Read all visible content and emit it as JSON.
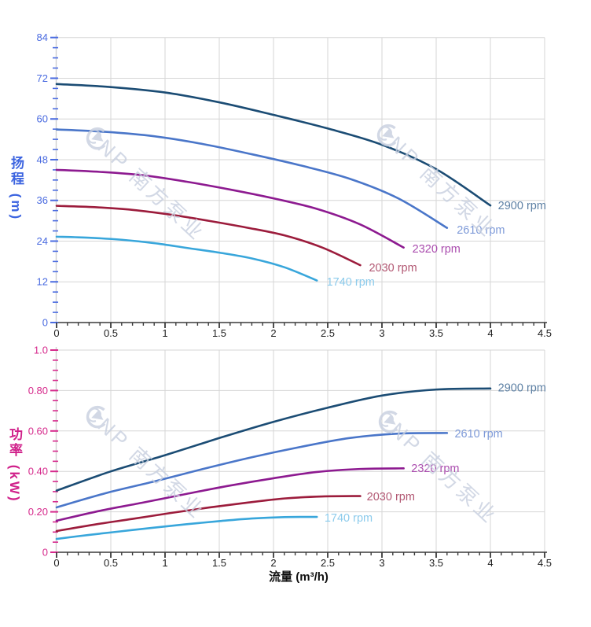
{
  "watermark": {
    "text": "CNP 南方泵业",
    "color": "#c7cfdf"
  },
  "chart_data": [
    {
      "type": "line",
      "id": "head-curves",
      "title": "",
      "xlabel": "流量 (m³/h)",
      "ylabel": "扬程 (m)",
      "xlim": [
        0,
        4.5
      ],
      "ylim": [
        0,
        84
      ],
      "x_major": 0.5,
      "x_minor": 0.1,
      "y_major": 12,
      "y_minor": 3,
      "grid": true,
      "x_tick_labels": [
        "0",
        "0.5",
        "1",
        "1.5",
        "2",
        "2.5",
        "3",
        "3.5",
        "4",
        "4.5"
      ],
      "y_tick_labels": [
        "0",
        "12",
        "24",
        "36",
        "48",
        "60",
        "72",
        "84"
      ],
      "axis_color": "#4a6be0",
      "x_axis_color": "#3a3a3a",
      "grid_color": "#d6d6d6",
      "series": [
        {
          "name": "2900 rpm",
          "color": "#1b4c74",
          "label_color": "#5d80a4",
          "label_x": 4.07,
          "label_y": 34.6,
          "x": [
            0,
            0.5,
            1,
            1.5,
            2,
            2.5,
            3,
            3.5,
            4
          ],
          "y": [
            70.3,
            69.4,
            67.8,
            64.9,
            61.2,
            57.2,
            52.4,
            45.2,
            34.5
          ]
        },
        {
          "name": "2610 rpm",
          "color": "#4a76c9",
          "label_color": "#7e9ad8",
          "label_x": 3.69,
          "label_y": 27.4,
          "x": [
            0,
            0.45,
            0.9,
            1.35,
            1.8,
            2.25,
            2.7,
            3.15,
            3.6
          ],
          "y": [
            56.9,
            56.2,
            54.9,
            52.6,
            49.6,
            46.3,
            42.4,
            36.6,
            27.9
          ]
        },
        {
          "name": "2320 rpm",
          "color": "#8d1a90",
          "label_color": "#aa4cae",
          "label_x": 3.28,
          "label_y": 21.8,
          "x": [
            0,
            0.4,
            0.8,
            1.2,
            1.6,
            2.0,
            2.4,
            2.8,
            3.2
          ],
          "y": [
            45.0,
            44.4,
            43.4,
            41.5,
            39.2,
            36.6,
            33.5,
            28.9,
            22.1
          ]
        },
        {
          "name": "2030 rpm",
          "color": "#9c1c3c",
          "label_color": "#b25873",
          "label_x": 2.88,
          "label_y": 16.2,
          "x": [
            0,
            0.35,
            0.7,
            1.05,
            1.4,
            1.75,
            2.1,
            2.45,
            2.8
          ],
          "y": [
            34.4,
            34.0,
            33.2,
            31.8,
            30.0,
            28.0,
            25.7,
            22.1,
            16.9
          ]
        },
        {
          "name": "1740 rpm",
          "color": "#38a6db",
          "label_color": "#8ccbec",
          "label_x": 2.49,
          "label_y": 12.0,
          "x": [
            0,
            0.3,
            0.6,
            0.9,
            1.2,
            1.5,
            1.8,
            2.1,
            2.4
          ],
          "y": [
            25.3,
            25.0,
            24.4,
            23.4,
            22.0,
            20.6,
            18.9,
            16.3,
            12.4
          ]
        }
      ]
    },
    {
      "type": "line",
      "id": "power-curves",
      "title": "",
      "xlabel": "流量 (m³/h)",
      "ylabel": "功率 (kW)",
      "xlim": [
        0,
        4.5
      ],
      "ylim": [
        0,
        1.0
      ],
      "x_major": 0.5,
      "x_minor": 0.1,
      "y_major": 0.2,
      "y_minor": 0.05,
      "grid": true,
      "x_tick_labels": [
        "0",
        "0.5",
        "1",
        "1.5",
        "2",
        "2.5",
        "3",
        "3.5",
        "4",
        "4.5"
      ],
      "y_tick_labels": [
        "0",
        "0.20",
        "0.40",
        "0.60",
        "0.80",
        "1.0"
      ],
      "axis_color": "#d62a8c",
      "x_axis_color": "#3a3a3a",
      "grid_color": "#d6d6d6",
      "series": [
        {
          "name": "2900 rpm",
          "color": "#1b4c74",
          "label_color": "#5d80a4",
          "label_x": 4.07,
          "label_y": 0.815,
          "x": [
            0,
            0.5,
            1,
            1.5,
            2,
            2.5,
            3,
            3.5,
            4
          ],
          "y": [
            0.305,
            0.4,
            0.48,
            0.565,
            0.645,
            0.715,
            0.775,
            0.805,
            0.81
          ]
        },
        {
          "name": "2610 rpm",
          "color": "#4a76c9",
          "label_color": "#7e9ad8",
          "label_x": 3.67,
          "label_y": 0.588,
          "x": [
            0,
            0.45,
            0.9,
            1.35,
            1.8,
            2.25,
            2.7,
            3.15,
            3.6
          ],
          "y": [
            0.222,
            0.292,
            0.35,
            0.412,
            0.47,
            0.521,
            0.565,
            0.587,
            0.59
          ]
        },
        {
          "name": "2320 rpm",
          "color": "#8d1a90",
          "label_color": "#aa4cae",
          "label_x": 3.27,
          "label_y": 0.417,
          "x": [
            0,
            0.4,
            0.8,
            1.2,
            1.6,
            2.0,
            2.4,
            2.8,
            3.2
          ],
          "y": [
            0.156,
            0.205,
            0.246,
            0.289,
            0.33,
            0.366,
            0.397,
            0.412,
            0.415
          ]
        },
        {
          "name": "2030 rpm",
          "color": "#9c1c3c",
          "label_color": "#b25873",
          "label_x": 2.86,
          "label_y": 0.277,
          "x": [
            0,
            0.35,
            0.7,
            1.05,
            1.4,
            1.75,
            2.1,
            2.45,
            2.8
          ],
          "y": [
            0.105,
            0.137,
            0.165,
            0.194,
            0.221,
            0.245,
            0.266,
            0.276,
            0.278
          ]
        },
        {
          "name": "1740 rpm",
          "color": "#38a6db",
          "label_color": "#8ccbec",
          "label_x": 2.47,
          "label_y": 0.171,
          "x": [
            0,
            0.3,
            0.6,
            0.9,
            1.2,
            1.5,
            1.8,
            2.1,
            2.4
          ],
          "y": [
            0.066,
            0.086,
            0.104,
            0.122,
            0.139,
            0.154,
            0.167,
            0.174,
            0.175
          ]
        }
      ]
    }
  ],
  "titles": {
    "head_axis_title_color": "#3c64e0",
    "power_axis_title_color": "#d0208a"
  }
}
